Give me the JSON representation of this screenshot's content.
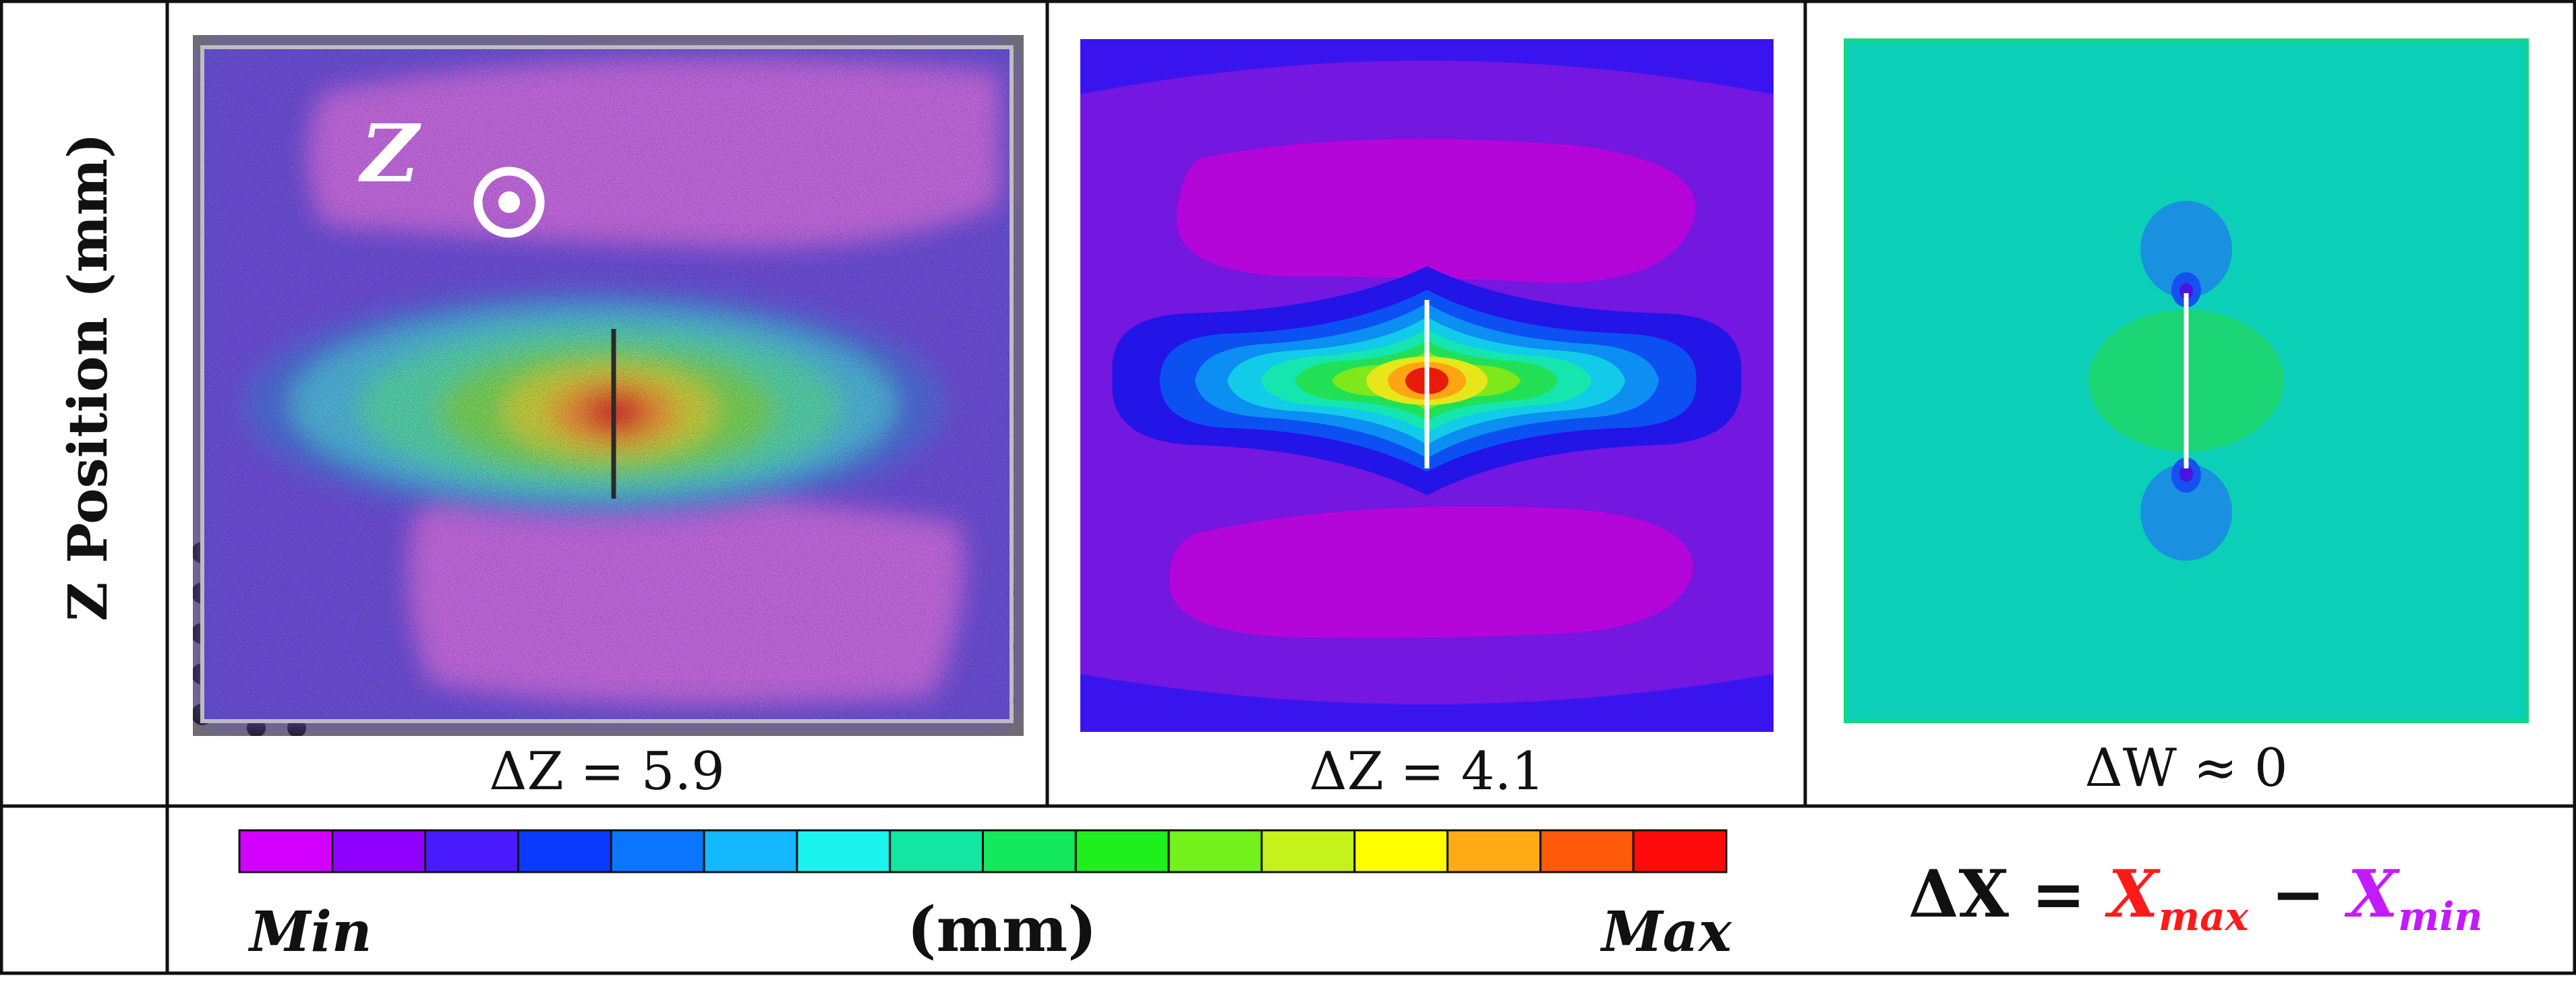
{
  "row_label": "Z Position (mm)",
  "captions": {
    "experiment": "ΔZ = 5.9",
    "simulation": "ΔZ = 4.1",
    "third": "ΔW ≈ 0"
  },
  "panel_overlay": {
    "axis_letter": "Z",
    "axis_symbol": "out-of-plane-circle-dot"
  },
  "colorbar": {
    "colors": [
      "#d400ff",
      "#8f00ff",
      "#4a1aff",
      "#0a3bff",
      "#0a76ff",
      "#14b8ff",
      "#1af2ee",
      "#12e6a0",
      "#14e85c",
      "#1ef01e",
      "#72f21a",
      "#c4f21a",
      "#ffff00",
      "#ffac14",
      "#ff5a0a",
      "#ff0a0a"
    ],
    "min_label": "Min",
    "max_label": "Max",
    "unit_label": "(mm)"
  },
  "equation": {
    "lhs": "ΔX",
    "equals": " = ",
    "xmax_base": "X",
    "xmax_sub": "max",
    "minus": " − ",
    "xmin_base": "X",
    "xmin_sub": "min",
    "xmax_color": "#ff1a1a",
    "xmin_color": "#c41aff"
  }
}
